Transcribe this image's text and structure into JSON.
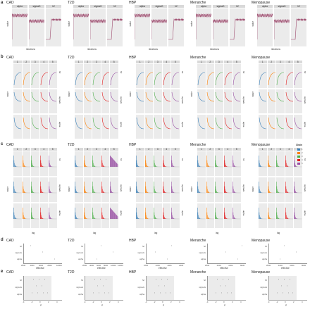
{
  "panels": {
    "a": {
      "label": "a",
      "facets": [
        "alpha",
        "sigmaG",
        "h2"
      ],
      "ylabel": "value",
      "xlabel": "iterations"
    },
    "b": {
      "label": "b",
      "facets": [
        "1",
        "2",
        "3",
        "4",
        "5"
      ],
      "rows": [
        "h2",
        "sigmaG",
        "alpha"
      ],
      "ylabel": "value"
    },
    "c": {
      "label": "c",
      "facets": [
        "1",
        "2",
        "3",
        "4",
        "5"
      ],
      "rows": [
        "h2",
        "sigmaG",
        "alpha"
      ],
      "ylabel": "value",
      "xlabel": "lag",
      "legend_title": "Chain"
    },
    "d": {
      "label": "d",
      "rows": [
        "h2",
        "sigmaG",
        "alpha"
      ],
      "xlabel": "effective"
    },
    "e": {
      "label": "e",
      "rows": [
        "h2",
        "sigmaG",
        "alpha"
      ],
      "xlabel": "Z"
    }
  },
  "traits": [
    "CAD",
    "T2D",
    "HBP",
    "Menarche",
    "Menopause"
  ],
  "d_ticks": [
    [
      "2000",
      "4000",
      "6000",
      "8000",
      "10000"
    ],
    [
      "2000",
      "4000",
      "6000",
      "8000",
      "10000",
      "12000"
    ],
    [
      "1000",
      "2000",
      "3000",
      "4000"
    ],
    [
      "2000",
      "4000",
      "6000",
      "8000"
    ],
    [
      "2000",
      "4000",
      "6000",
      "8000"
    ]
  ],
  "e_ticks": [
    "-4",
    "-2",
    "0",
    "2",
    "4"
  ],
  "chain_colors": [
    "#377eb8",
    "#ff7f00",
    "#4daf4a",
    "#e41a1c",
    "#984ea3"
  ]
}
